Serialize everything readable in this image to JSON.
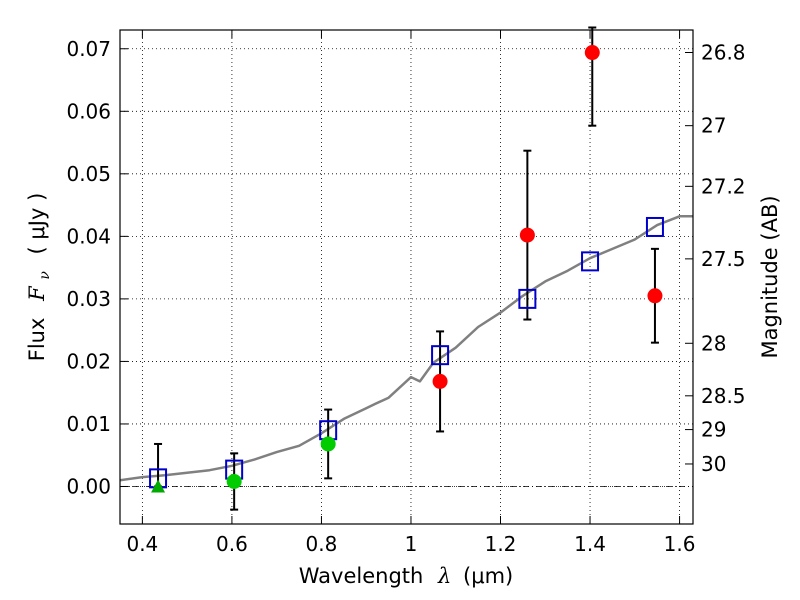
{
  "chart_data": {
    "type": "scatter",
    "xlabel_prefix": "Wavelength",
    "xlabel_symbol": "λ",
    "xlabel_unit": "(μm)",
    "ylabel_prefix": "Flux",
    "ylabel_symbol_base": "F",
    "ylabel_symbol_sub": "ν",
    "ylabel_unit": "( μJy )",
    "ylabel_right": "Magnitude (AB)",
    "xlim": [
      0.35,
      1.63
    ],
    "ylim": [
      -0.006,
      0.073
    ],
    "x_ticks": [
      0.4,
      0.6,
      0.8,
      1.0,
      1.2,
      1.4,
      1.6
    ],
    "x_tick_labels": [
      "0.4",
      "0.6",
      "0.8",
      "1",
      "1.2",
      "1.4",
      "1.6"
    ],
    "y_ticks": [
      0.0,
      0.01,
      0.02,
      0.03,
      0.04,
      0.05,
      0.06,
      0.07
    ],
    "y_tick_labels": [
      "0.00",
      "0.01",
      "0.02",
      "0.03",
      "0.04",
      "0.05",
      "0.06",
      "0.07"
    ],
    "right_ticks": [
      {
        "label": "26.8",
        "flux": 0.0694
      },
      {
        "label": "27",
        "flux": 0.0577
      },
      {
        "label": "27.2",
        "flux": 0.048
      },
      {
        "label": "27.5",
        "flux": 0.0364
      },
      {
        "label": "28",
        "flux": 0.0229
      },
      {
        "label": "28.5",
        "flux": 0.0145
      },
      {
        "label": "29",
        "flux": 0.0091
      },
      {
        "label": "30",
        "flux": 0.0036
      }
    ],
    "grid": true,
    "zero_line": true,
    "series": [
      {
        "marker": "line",
        "color": "#808080",
        "x": [
          0.35,
          0.4,
          0.45,
          0.5,
          0.55,
          0.6,
          0.65,
          0.7,
          0.75,
          0.8,
          0.85,
          0.9,
          0.92,
          0.95,
          1.0,
          1.02,
          1.05,
          1.1,
          1.15,
          1.2,
          1.25,
          1.3,
          1.35,
          1.4,
          1.45,
          1.5,
          1.55,
          1.6,
          1.63
        ],
        "y": [
          0.001,
          0.0015,
          0.0018,
          0.0022,
          0.0026,
          0.0033,
          0.0043,
          0.0055,
          0.0065,
          0.0085,
          0.0108,
          0.0125,
          0.0132,
          0.0142,
          0.0175,
          0.0168,
          0.0198,
          0.0222,
          0.0255,
          0.0278,
          0.0305,
          0.0328,
          0.0345,
          0.0365,
          0.038,
          0.0395,
          0.0418,
          0.0432,
          0.0432
        ]
      },
      {
        "marker": "open-square",
        "color": "#0000cc",
        "x": [
          0.435,
          0.605,
          0.815,
          1.065,
          1.26,
          1.4,
          1.545
        ],
        "y": [
          0.0013,
          0.0027,
          0.009,
          0.021,
          0.03,
          0.036,
          0.0415
        ]
      },
      {
        "marker": "triangle",
        "color": "#00aa00",
        "x": [
          0.435
        ],
        "y": [
          0.0
        ],
        "yerr_low": [
          0.0
        ],
        "yerr_high": [
          0.0068
        ]
      },
      {
        "marker": "circle",
        "color": "#00cc00",
        "x": [
          0.605,
          0.815
        ],
        "y": [
          0.0008,
          0.0068
        ],
        "yerr_low": [
          0.0045,
          0.0055
        ],
        "yerr_high": [
          0.0045,
          0.0055
        ]
      },
      {
        "marker": "circle",
        "color": "#ff0000",
        "x": [
          1.065,
          1.26,
          1.405,
          1.545
        ],
        "y": [
          0.0168,
          0.0402,
          0.0694,
          0.0305
        ],
        "yerr_low": [
          0.008,
          0.0135,
          0.0117,
          0.0075
        ],
        "yerr_high": [
          0.008,
          0.0135,
          0.004,
          0.0075
        ]
      }
    ]
  }
}
